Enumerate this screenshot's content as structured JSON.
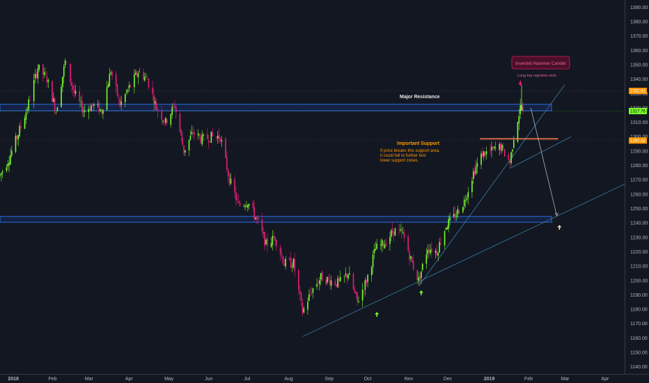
{
  "chart_data": {
    "type": "candlestick",
    "y_axis": {
      "range": [
        1135,
        1395
      ],
      "ticks": [
        1140,
        1150,
        1160,
        1170,
        1180,
        1190,
        1200,
        1210,
        1220,
        1230,
        1240,
        1250,
        1260,
        1270,
        1280,
        1290,
        1300,
        1310,
        1320,
        1330,
        1340,
        1350,
        1360,
        1370,
        1380,
        1390
      ],
      "tick_labels": [
        "1140.00",
        "1150.00",
        "1160.00",
        "1170.00",
        "1180.00",
        "1190.00",
        "1200.00",
        "1210.00",
        "1220.00",
        "1230.00",
        "1240.00",
        "1250.00",
        "1260.00",
        "1270.00",
        "1280.00",
        "1290.00",
        "1300.00",
        "1310.00",
        "1320.00",
        "1330.00",
        "1340.00",
        "1350.00",
        "1360.00",
        "1370.00",
        "1380.00",
        "1390.00"
      ]
    },
    "x_axis": {
      "range": [
        "2017-12-27",
        "2019-04-20"
      ],
      "ticks": [
        "2018-01-01",
        "2018-02-01",
        "2018-03-01",
        "2018-04-01",
        "2018-05-01",
        "2018-06-01",
        "2018-07-01",
        "2018-08-01",
        "2018-09-01",
        "2018-10-01",
        "2018-11-01",
        "2018-12-01",
        "2019-01-01",
        "2019-02-01",
        "2019-03-01",
        "2019-04-01"
      ],
      "tick_labels": [
        "2018",
        "Feb",
        "Mar",
        "Apr",
        "May",
        "Jun",
        "Jul",
        "Aug",
        "Sep",
        "Oct",
        "Nov",
        "Dec",
        "2019",
        "Feb",
        "Mar",
        "Apr"
      ]
    },
    "price_path": [
      [
        "2017-12-27",
        1273
      ],
      [
        "2018-01-03",
        1285
      ],
      [
        "2018-01-10",
        1302
      ],
      [
        "2018-01-17",
        1320
      ],
      [
        "2018-01-25",
        1348
      ],
      [
        "2018-02-01",
        1340
      ],
      [
        "2018-02-08",
        1318
      ],
      [
        "2018-02-15",
        1352
      ],
      [
        "2018-02-22",
        1330
      ],
      [
        "2018-03-01",
        1318
      ],
      [
        "2018-03-08",
        1322
      ],
      [
        "2018-03-15",
        1318
      ],
      [
        "2018-03-22",
        1346
      ],
      [
        "2018-03-29",
        1322
      ],
      [
        "2018-04-05",
        1334
      ],
      [
        "2018-04-12",
        1345
      ],
      [
        "2018-04-19",
        1340
      ],
      [
        "2018-04-26",
        1320
      ],
      [
        "2018-05-03",
        1310
      ],
      [
        "2018-05-10",
        1322
      ],
      [
        "2018-05-17",
        1290
      ],
      [
        "2018-05-24",
        1303
      ],
      [
        "2018-05-31",
        1298
      ],
      [
        "2018-06-07",
        1300
      ],
      [
        "2018-06-14",
        1300
      ],
      [
        "2018-06-21",
        1270
      ],
      [
        "2018-06-28",
        1252
      ],
      [
        "2018-07-05",
        1255
      ],
      [
        "2018-07-12",
        1242
      ],
      [
        "2018-07-19",
        1225
      ],
      [
        "2018-07-26",
        1230
      ],
      [
        "2018-08-02",
        1212
      ],
      [
        "2018-08-09",
        1212
      ],
      [
        "2018-08-16",
        1178
      ],
      [
        "2018-08-23",
        1193
      ],
      [
        "2018-08-30",
        1202
      ],
      [
        "2018-09-06",
        1200
      ],
      [
        "2018-09-13",
        1198
      ],
      [
        "2018-09-20",
        1205
      ],
      [
        "2018-09-27",
        1185
      ],
      [
        "2018-10-04",
        1200
      ],
      [
        "2018-10-11",
        1222
      ],
      [
        "2018-10-18",
        1226
      ],
      [
        "2018-10-25",
        1235
      ],
      [
        "2018-11-01",
        1232
      ],
      [
        "2018-11-08",
        1212
      ],
      [
        "2018-11-13",
        1200
      ],
      [
        "2018-11-20",
        1223
      ],
      [
        "2018-11-27",
        1220
      ],
      [
        "2018-12-04",
        1238
      ],
      [
        "2018-12-11",
        1245
      ],
      [
        "2018-12-18",
        1255
      ],
      [
        "2018-12-25",
        1275
      ],
      [
        "2019-01-01",
        1288
      ],
      [
        "2019-01-08",
        1290
      ],
      [
        "2019-01-15",
        1293
      ],
      [
        "2019-01-22",
        1282
      ],
      [
        "2019-01-25",
        1300
      ],
      [
        "2019-01-30",
        1320
      ],
      [
        "2019-02-01",
        1318
      ]
    ],
    "price_label": "1317.76",
    "levels": [
      {
        "label": "1331.81",
        "value": 1331.8,
        "color": "#ff9800"
      },
      {
        "label": "1297.32",
        "value": 1297.3,
        "color": "#ff9800"
      }
    ],
    "zones": [
      {
        "name": "Major Resistance",
        "top": 1322.5,
        "bottom": 1318,
        "color": "#1e53e5"
      },
      {
        "name": "",
        "top": 1244.5,
        "bottom": 1240.5,
        "color": "#1e53e5"
      }
    ],
    "annotations": {
      "major_resistance": "Major Resistance",
      "important_support": "Important Support",
      "support_note_lines": [
        "If price breaks this support area,",
        "it could fall to further test",
        "lower support zones"
      ],
      "inverted_hammer": "Inverted Hammer Candle",
      "long_wick": "Long top rejection wick"
    },
    "colors": {
      "up": "#7bff2e",
      "down": "#e91e78",
      "background": "#131722"
    }
  }
}
